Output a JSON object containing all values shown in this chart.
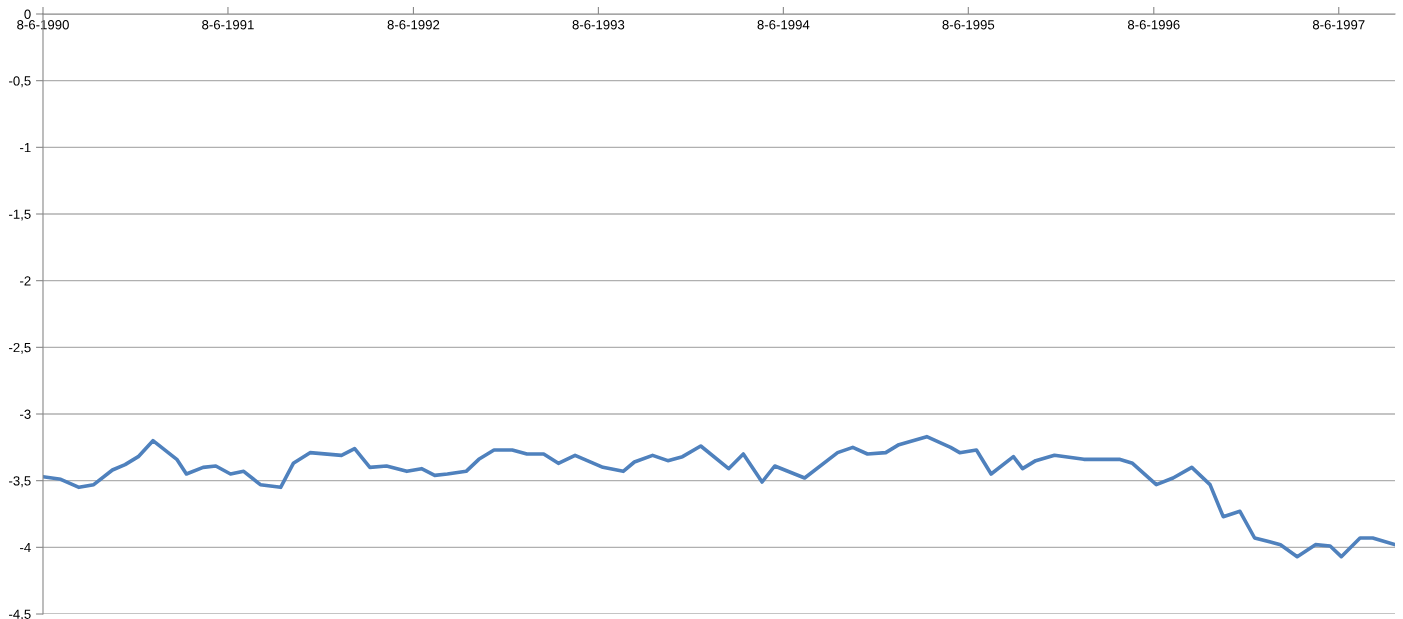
{
  "chart_data": {
    "type": "line",
    "x": [
      "1990-06-08",
      "1990-07-13",
      "1990-08-18",
      "1990-09-16",
      "1990-10-23",
      "1990-11-17",
      "1990-12-13",
      "1991-01-11",
      "1991-02-27",
      "1991-03-18",
      "1991-04-20",
      "1991-05-15",
      "1991-06-13",
      "1991-07-09",
      "1991-08-11",
      "1991-09-20",
      "1991-10-15",
      "1991-11-17",
      "1992-01-18",
      "1992-02-13",
      "1992-03-14",
      "1992-04-16",
      "1992-05-26",
      "1992-06-24",
      "1992-07-20",
      "1992-08-14",
      "1992-09-20",
      "1992-10-15",
      "1992-11-14",
      "1992-12-20",
      "1993-01-18",
      "1993-02-20",
      "1993-03-21",
      "1993-04-23",
      "1993-06-17",
      "1993-07-27",
      "1993-08-18",
      "1993-09-23",
      "1993-10-23",
      "1993-11-21",
      "1993-12-27",
      "1994-02-20",
      "1994-03-21",
      "1994-04-27",
      "1994-05-22",
      "1994-07-20",
      "1994-09-23",
      "1994-10-23",
      "1994-11-21",
      "1994-12-27",
      "1995-01-22",
      "1995-03-18",
      "1995-05-04",
      "1995-05-22",
      "1995-06-24",
      "1995-07-23",
      "1995-09-05",
      "1995-09-23",
      "1995-10-19",
      "1995-11-25",
      "1996-01-22",
      "1996-02-24",
      "1996-04-01",
      "1996-04-27",
      "1996-06-13",
      "1996-07-16",
      "1996-08-22",
      "1996-09-27",
      "1996-10-23",
      "1996-11-25",
      "1996-12-24",
      "1997-02-13",
      "1997-03-18",
      "1997-04-23",
      "1997-05-22",
      "1997-06-13",
      "1997-07-20",
      "1997-08-14",
      "1997-09-27"
    ],
    "series": [
      {
        "color": "#4f81bd",
        "values": [
          -3.47,
          -3.49,
          -3.55,
          -3.53,
          -3.42,
          -3.38,
          -3.32,
          -3.2,
          -3.34,
          -3.45,
          -3.4,
          -3.39,
          -3.45,
          -3.43,
          -3.53,
          -3.55,
          -3.37,
          -3.29,
          -3.31,
          -3.26,
          -3.4,
          -3.39,
          -3.43,
          -3.41,
          -3.46,
          -3.45,
          -3.43,
          -3.34,
          -3.27,
          -3.27,
          -3.3,
          -3.3,
          -3.37,
          -3.31,
          -3.4,
          -3.43,
          -3.36,
          -3.31,
          -3.35,
          -3.32,
          -3.24,
          -3.41,
          -3.3,
          -3.51,
          -3.39,
          -3.48,
          -3.29,
          -3.25,
          -3.3,
          -3.29,
          -3.23,
          -3.17,
          -3.25,
          -3.29,
          -3.27,
          -3.45,
          -3.32,
          -3.41,
          -3.35,
          -3.31,
          -3.34,
          -3.34,
          -3.34,
          -3.37,
          -3.53,
          -3.48,
          -3.4,
          -3.53,
          -3.77,
          -3.73,
          -3.93,
          -3.98,
          -4.07,
          -3.98,
          -3.99,
          -4.07,
          -3.93,
          -3.93,
          -3.98
        ]
      }
    ],
    "xlim": [
      "1990-06-08",
      "1997-09-27"
    ],
    "xticks": [
      {
        "value": "1990-06-08",
        "label": "8-6-1990"
      },
      {
        "value": "1991-06-08",
        "label": "8-6-1991"
      },
      {
        "value": "1992-06-08",
        "label": "8-6-1992"
      },
      {
        "value": "1993-06-08",
        "label": "8-6-1993"
      },
      {
        "value": "1994-06-08",
        "label": "8-6-1994"
      },
      {
        "value": "1995-06-08",
        "label": "8-6-1995"
      },
      {
        "value": "1996-06-08",
        "label": "8-6-1996"
      },
      {
        "value": "1997-06-08",
        "label": "8-6-1997"
      }
    ],
    "ylim": [
      -4.5,
      0
    ],
    "yticks": [
      {
        "value": 0,
        "label": "0"
      },
      {
        "value": -0.5,
        "label": "-0,5"
      },
      {
        "value": -1,
        "label": "-1"
      },
      {
        "value": -1.5,
        "label": "-1,5"
      },
      {
        "value": -2,
        "label": "-2"
      },
      {
        "value": -2.5,
        "label": "-2,5"
      },
      {
        "value": -3,
        "label": "-3"
      },
      {
        "value": -3.5,
        "label": "-3,5"
      },
      {
        "value": -4,
        "label": "-4"
      },
      {
        "value": -4.5,
        "label": "-4,5"
      }
    ],
    "grid": "y",
    "marker": "none",
    "line_style": "solid"
  }
}
